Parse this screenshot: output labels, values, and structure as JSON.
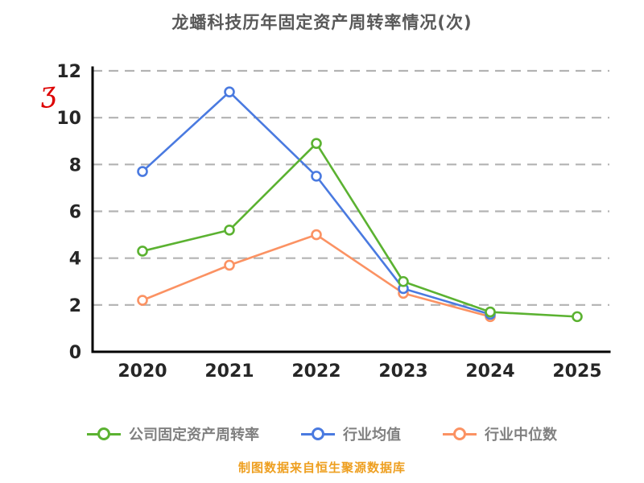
{
  "watermark_glyph": "ʒ",
  "caption": "制图数据来自恒生聚源数据库",
  "colors": {
    "title": "#595959",
    "caption": "#ee9f20",
    "axis": "#000000",
    "gridline": "#b3b3b3",
    "tick_label": "#262626",
    "legend_label": "#808080",
    "watermark": "#dd0000",
    "background": "#ffffff"
  },
  "chart_data": {
    "type": "line",
    "title": "龙蟠科技历年固定资产周转率情况(次)",
    "categories": [
      "2020",
      "2021",
      "2022",
      "2023",
      "2024",
      "2025"
    ],
    "series": [
      {
        "name": "公司固定资产周转率",
        "color": "#5bb231",
        "values": [
          4.3,
          5.2,
          8.9,
          3.0,
          1.7,
          1.5
        ]
      },
      {
        "name": "行业均值",
        "color": "#4a7ae0",
        "values": [
          7.7,
          11.1,
          7.5,
          2.7,
          1.6,
          null
        ]
      },
      {
        "name": "行业中位数",
        "color": "#fb9263",
        "values": [
          2.2,
          3.7,
          5.0,
          2.5,
          1.5,
          null
        ]
      }
    ],
    "xlabel": "",
    "ylabel": "",
    "ylim": [
      0,
      12
    ],
    "yticks": [
      0,
      2,
      4,
      6,
      8,
      10,
      12
    ],
    "grid": "horizontal-dashed",
    "legend_position": "bottom",
    "marker": "open-circle"
  }
}
